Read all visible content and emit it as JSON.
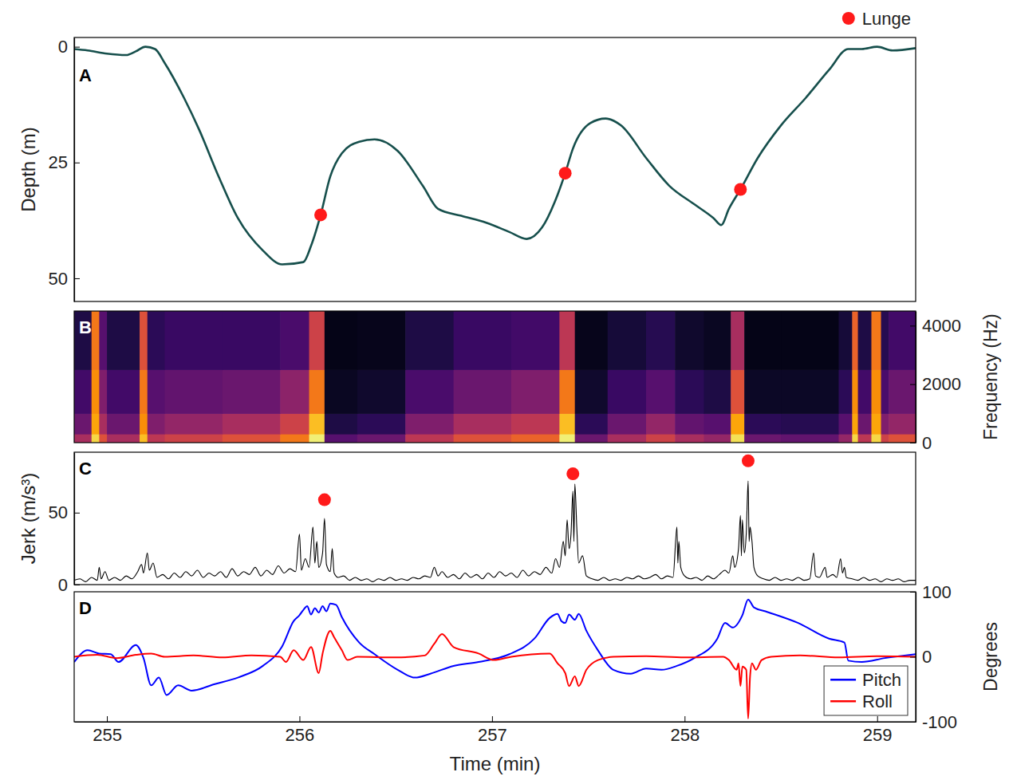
{
  "chart_data": [
    {
      "type": "line",
      "panel_label": "A",
      "ylabel": "Depth (m)",
      "xlim": [
        254.83,
        259.2
      ],
      "ylim": [
        55,
        -2
      ],
      "yticks": [
        0,
        25,
        50
      ],
      "tick_labels": "y",
      "legend": "top-right",
      "series": [
        {
          "color": "#164f4c",
          "x": [
            254.83,
            254.9,
            255.0,
            255.1,
            255.15,
            255.2,
            255.25,
            255.3,
            255.4,
            255.48,
            255.58,
            255.68,
            255.81,
            255.91,
            256.02,
            256.06,
            256.11,
            256.16,
            256.22,
            256.31,
            256.39,
            256.51,
            256.64,
            256.72,
            256.84,
            256.97,
            257.09,
            257.18,
            257.26,
            257.34,
            257.38,
            257.42,
            257.51,
            257.59,
            257.67,
            257.8,
            257.92,
            258.05,
            258.15,
            258.19,
            258.23,
            258.29,
            258.38,
            258.5,
            258.63,
            258.75,
            258.85,
            258.92,
            259.0,
            259.08,
            259.2
          ],
          "values": [
            0.5,
            0.8,
            1.5,
            1.8,
            1.0,
            0,
            0.5,
            3.5,
            11,
            18,
            28,
            37,
            44,
            47,
            46.5,
            43,
            36.3,
            28,
            23,
            20.5,
            20,
            22.5,
            30,
            35,
            36.5,
            38,
            40,
            41.5,
            39,
            32,
            27.3,
            22,
            16.5,
            15.5,
            17,
            24,
            30,
            34,
            37,
            38.5,
            35,
            30.8,
            24,
            17,
            11,
            5,
            0.5,
            0.5,
            0,
            0.8,
            0.3
          ]
        },
        {
          "name": "Lunge",
          "type": "scatter",
          "marker": "circle",
          "color": "#ff1a1a",
          "x": [
            256.11,
            257.38,
            258.29
          ],
          "values": [
            36.3,
            27.3,
            30.8
          ]
        }
      ]
    },
    {
      "type": "heatmap",
      "panel_label": "B",
      "y2label": "Frequency (Hz)",
      "xlim": [
        254.83,
        259.2
      ],
      "y2lim": [
        0,
        4500
      ],
      "y2ticks": [
        0,
        2000,
        4000
      ],
      "tick_labels": "y",
      "color": "inferno",
      "zlim": [
        0,
        1
      ],
      "time_edges": [
        254.83,
        254.92,
        254.96,
        255.0,
        255.17,
        255.21,
        255.3,
        255.6,
        255.9,
        256.05,
        256.13,
        256.3,
        256.55,
        256.8,
        257.1,
        257.35,
        257.43,
        257.6,
        257.8,
        257.95,
        258.1,
        258.24,
        258.31,
        258.5,
        258.8,
        258.87,
        258.9,
        258.97,
        259.02,
        259.06,
        259.2
      ],
      "freq_edges": [
        0,
        300,
        1000,
        2500,
        4500
      ],
      "power": [
        [
          0.45,
          0.9,
          0.6,
          0.45,
          0.85,
          0.5,
          0.55,
          0.6,
          0.7,
          0.95,
          0.25,
          0.3,
          0.5,
          0.6,
          0.65,
          0.95,
          0.3,
          0.45,
          0.55,
          0.45,
          0.4,
          0.92,
          0.3,
          0.28,
          0.4,
          0.9,
          0.5,
          0.9,
          0.55,
          0.6
        ],
        [
          0.3,
          0.8,
          0.45,
          0.3,
          0.75,
          0.35,
          0.4,
          0.45,
          0.55,
          0.85,
          0.12,
          0.15,
          0.35,
          0.45,
          0.5,
          0.85,
          0.15,
          0.3,
          0.4,
          0.28,
          0.25,
          0.8,
          0.15,
          0.14,
          0.25,
          0.8,
          0.3,
          0.8,
          0.35,
          0.4
        ],
        [
          0.2,
          0.75,
          0.35,
          0.2,
          0.7,
          0.25,
          0.28,
          0.3,
          0.38,
          0.7,
          0.06,
          0.08,
          0.22,
          0.3,
          0.35,
          0.7,
          0.08,
          0.18,
          0.25,
          0.15,
          0.12,
          0.6,
          0.07,
          0.07,
          0.15,
          0.75,
          0.2,
          0.75,
          0.22,
          0.3
        ],
        [
          0.12,
          0.7,
          0.25,
          0.12,
          0.6,
          0.15,
          0.18,
          0.18,
          0.22,
          0.55,
          0.04,
          0.05,
          0.12,
          0.18,
          0.2,
          0.5,
          0.05,
          0.1,
          0.14,
          0.08,
          0.06,
          0.45,
          0.04,
          0.04,
          0.1,
          0.65,
          0.12,
          0.7,
          0.14,
          0.2
        ]
      ]
    },
    {
      "type": "line",
      "panel_label": "C",
      "ylabel": "Jerk (m/s³)",
      "xlim": [
        254.83,
        259.2
      ],
      "ylim": [
        0,
        92
      ],
      "yticks": [
        0,
        50
      ],
      "tick_labels": "y",
      "series": [
        {
          "color": "#000000",
          "x": [
            254.83,
            254.86,
            254.89,
            254.92,
            254.95,
            254.96,
            254.97,
            254.99,
            255.01,
            255.04,
            255.07,
            255.1,
            255.13,
            255.16,
            255.18,
            255.19,
            255.21,
            255.22,
            255.24,
            255.26,
            255.29,
            255.32,
            255.35,
            255.38,
            255.41,
            255.44,
            255.47,
            255.5,
            255.53,
            255.56,
            255.59,
            255.62,
            255.65,
            255.68,
            255.71,
            255.74,
            255.77,
            255.8,
            255.83,
            255.86,
            255.89,
            255.92,
            255.95,
            255.98,
            256.0,
            256.01,
            256.03,
            256.05,
            256.07,
            256.08,
            256.09,
            256.1,
            256.12,
            256.13,
            256.14,
            256.16,
            256.17,
            256.18,
            256.2,
            256.23,
            256.26,
            256.29,
            256.32,
            256.35,
            256.38,
            256.41,
            256.44,
            256.47,
            256.5,
            256.53,
            256.56,
            256.59,
            256.62,
            256.65,
            256.68,
            256.7,
            256.72,
            256.74,
            256.77,
            256.8,
            256.83,
            256.86,
            256.89,
            256.92,
            256.95,
            256.98,
            257.01,
            257.04,
            257.07,
            257.1,
            257.13,
            257.16,
            257.19,
            257.22,
            257.25,
            257.28,
            257.31,
            257.33,
            257.35,
            257.37,
            257.38,
            257.39,
            257.4,
            257.41,
            257.42,
            257.425,
            257.43,
            257.44,
            257.45,
            257.47,
            257.49,
            257.52,
            257.55,
            257.58,
            257.61,
            257.64,
            257.67,
            257.7,
            257.73,
            257.76,
            257.79,
            257.82,
            257.85,
            257.88,
            257.91,
            257.94,
            257.96,
            257.965,
            257.97,
            257.98,
            258.0,
            258.03,
            258.06,
            258.09,
            258.12,
            258.15,
            258.18,
            258.21,
            258.23,
            258.25,
            258.26,
            258.28,
            258.29,
            258.295,
            258.3,
            258.31,
            258.32,
            258.33,
            258.335,
            258.34,
            258.35,
            258.36,
            258.38,
            258.41,
            258.44,
            258.47,
            258.5,
            258.53,
            258.56,
            258.59,
            258.62,
            258.65,
            258.67,
            258.68,
            258.7,
            258.73,
            258.74,
            258.77,
            258.79,
            258.81,
            258.82,
            258.83,
            258.84,
            258.87,
            258.9,
            258.93,
            258.96,
            258.99,
            259.02,
            259.05,
            259.08,
            259.11,
            259.14,
            259.17,
            259.2
          ],
          "values": [
            3,
            4,
            2,
            5,
            3,
            12,
            4,
            9,
            3,
            5,
            3,
            6,
            4,
            9,
            14,
            8,
            22,
            10,
            15,
            5,
            7,
            4,
            8,
            5,
            9,
            6,
            10,
            5,
            8,
            6,
            9,
            5,
            11,
            6,
            9,
            7,
            12,
            6,
            10,
            7,
            13,
            8,
            11,
            9,
            35,
            10,
            18,
            12,
            40,
            15,
            30,
            12,
            22,
            46,
            14,
            9,
            25,
            8,
            5,
            6,
            3,
            5,
            3,
            4,
            2,
            4,
            3,
            5,
            3,
            4,
            3,
            5,
            4,
            6,
            5,
            12,
            6,
            9,
            5,
            7,
            4,
            8,
            5,
            7,
            4,
            8,
            5,
            9,
            6,
            8,
            5,
            10,
            6,
            9,
            7,
            12,
            8,
            18,
            12,
            30,
            20,
            45,
            25,
            35,
            65,
            30,
            70,
            40,
            15,
            20,
            6,
            4,
            3,
            5,
            3,
            4,
            3,
            5,
            4,
            6,
            4,
            5,
            7,
            4,
            6,
            5,
            40,
            15,
            30,
            12,
            6,
            4,
            5,
            3,
            6,
            4,
            7,
            10,
            8,
            20,
            12,
            25,
            48,
            20,
            45,
            22,
            35,
            72,
            30,
            40,
            30,
            12,
            6,
            4,
            3,
            5,
            3,
            4,
            3,
            5,
            3,
            4,
            22,
            6,
            5,
            12,
            5,
            7,
            5,
            18,
            8,
            12,
            5,
            4,
            3,
            5,
            3,
            4,
            2,
            4,
            3,
            4,
            2,
            3,
            3
          ]
        },
        {
          "type": "scatter",
          "marker": "circle",
          "color": "#ff1a1a",
          "x": [
            256.13,
            257.42,
            258.33
          ],
          "values": [
            59,
            77,
            86
          ]
        }
      ]
    },
    {
      "type": "line",
      "panel_label": "D",
      "xlabel": "Time (min)",
      "y2label": "Degrees",
      "xlim": [
        254.83,
        259.2
      ],
      "xticks": [
        255,
        256,
        257,
        258,
        259
      ],
      "y2lim": [
        -100,
        100
      ],
      "y2ticks": [
        -100,
        0,
        100
      ],
      "legend": "bottom-right",
      "series": [
        {
          "name": "Pitch",
          "color": "#0000ff",
          "axis": "y2",
          "x": [
            254.83,
            254.9,
            254.96,
            255.02,
            255.06,
            255.15,
            255.19,
            255.23,
            255.27,
            255.31,
            255.37,
            255.44,
            255.56,
            255.68,
            255.81,
            255.91,
            255.97,
            256.0,
            256.02,
            256.04,
            256.06,
            256.08,
            256.1,
            256.12,
            256.14,
            256.16,
            256.19,
            256.22,
            256.31,
            256.39,
            256.51,
            256.6,
            256.68,
            256.8,
            256.93,
            257.09,
            257.22,
            257.3,
            257.34,
            257.36,
            257.38,
            257.4,
            257.43,
            257.45,
            257.49,
            257.55,
            257.63,
            257.72,
            257.8,
            257.88,
            257.96,
            258.05,
            258.17,
            258.21,
            258.25,
            258.3,
            258.33,
            258.36,
            258.42,
            258.59,
            258.75,
            258.83,
            258.85,
            258.92,
            259.04,
            259.2
          ],
          "values": [
            -8,
            10,
            5,
            4,
            -8,
            18,
            -2,
            -44,
            -32,
            -59,
            -44,
            -52,
            -42,
            -32,
            -14,
            16,
            55,
            64,
            72,
            78,
            65,
            75,
            68,
            78,
            70,
            82,
            80,
            61,
            22,
            4,
            -20,
            -32,
            -26,
            -14,
            -8,
            4,
            28,
            60,
            66,
            55,
            52,
            65,
            57,
            66,
            40,
            10,
            -20,
            -26,
            -18,
            -20,
            -14,
            -2,
            28,
            52,
            45,
            64,
            88,
            76,
            70,
            52,
            28,
            22,
            -6,
            -8,
            -2,
            4
          ]
        },
        {
          "name": "Roll",
          "color": "#ff0000",
          "axis": "y2",
          "x": [
            254.83,
            254.95,
            255.05,
            255.15,
            255.23,
            255.3,
            255.45,
            255.6,
            255.75,
            255.9,
            255.93,
            255.97,
            256.02,
            256.06,
            256.1,
            256.12,
            256.16,
            256.18,
            256.22,
            256.25,
            256.3,
            256.5,
            256.65,
            256.7,
            256.74,
            256.8,
            256.93,
            257.01,
            257.1,
            257.3,
            257.34,
            257.38,
            257.4,
            257.43,
            257.45,
            257.49,
            257.55,
            257.63,
            257.8,
            258.0,
            258.2,
            258.23,
            258.27,
            258.28,
            258.29,
            258.3,
            258.32,
            258.33,
            258.34,
            258.35,
            258.37,
            258.4,
            258.45,
            258.6,
            258.8,
            259.0,
            259.2
          ],
          "values": [
            0,
            3,
            -2,
            3,
            5,
            0,
            2,
            -1,
            2,
            0,
            -8,
            10,
            -5,
            15,
            -25,
            5,
            40,
            30,
            10,
            -5,
            0,
            -1,
            2,
            20,
            35,
            15,
            5,
            -5,
            0,
            5,
            -10,
            -25,
            -45,
            -30,
            -45,
            -20,
            -5,
            0,
            1,
            -1,
            0,
            -5,
            -20,
            -10,
            -45,
            -15,
            -20,
            -95,
            -30,
            -10,
            -20,
            -5,
            0,
            2,
            -1,
            1,
            0
          ]
        }
      ]
    }
  ]
}
